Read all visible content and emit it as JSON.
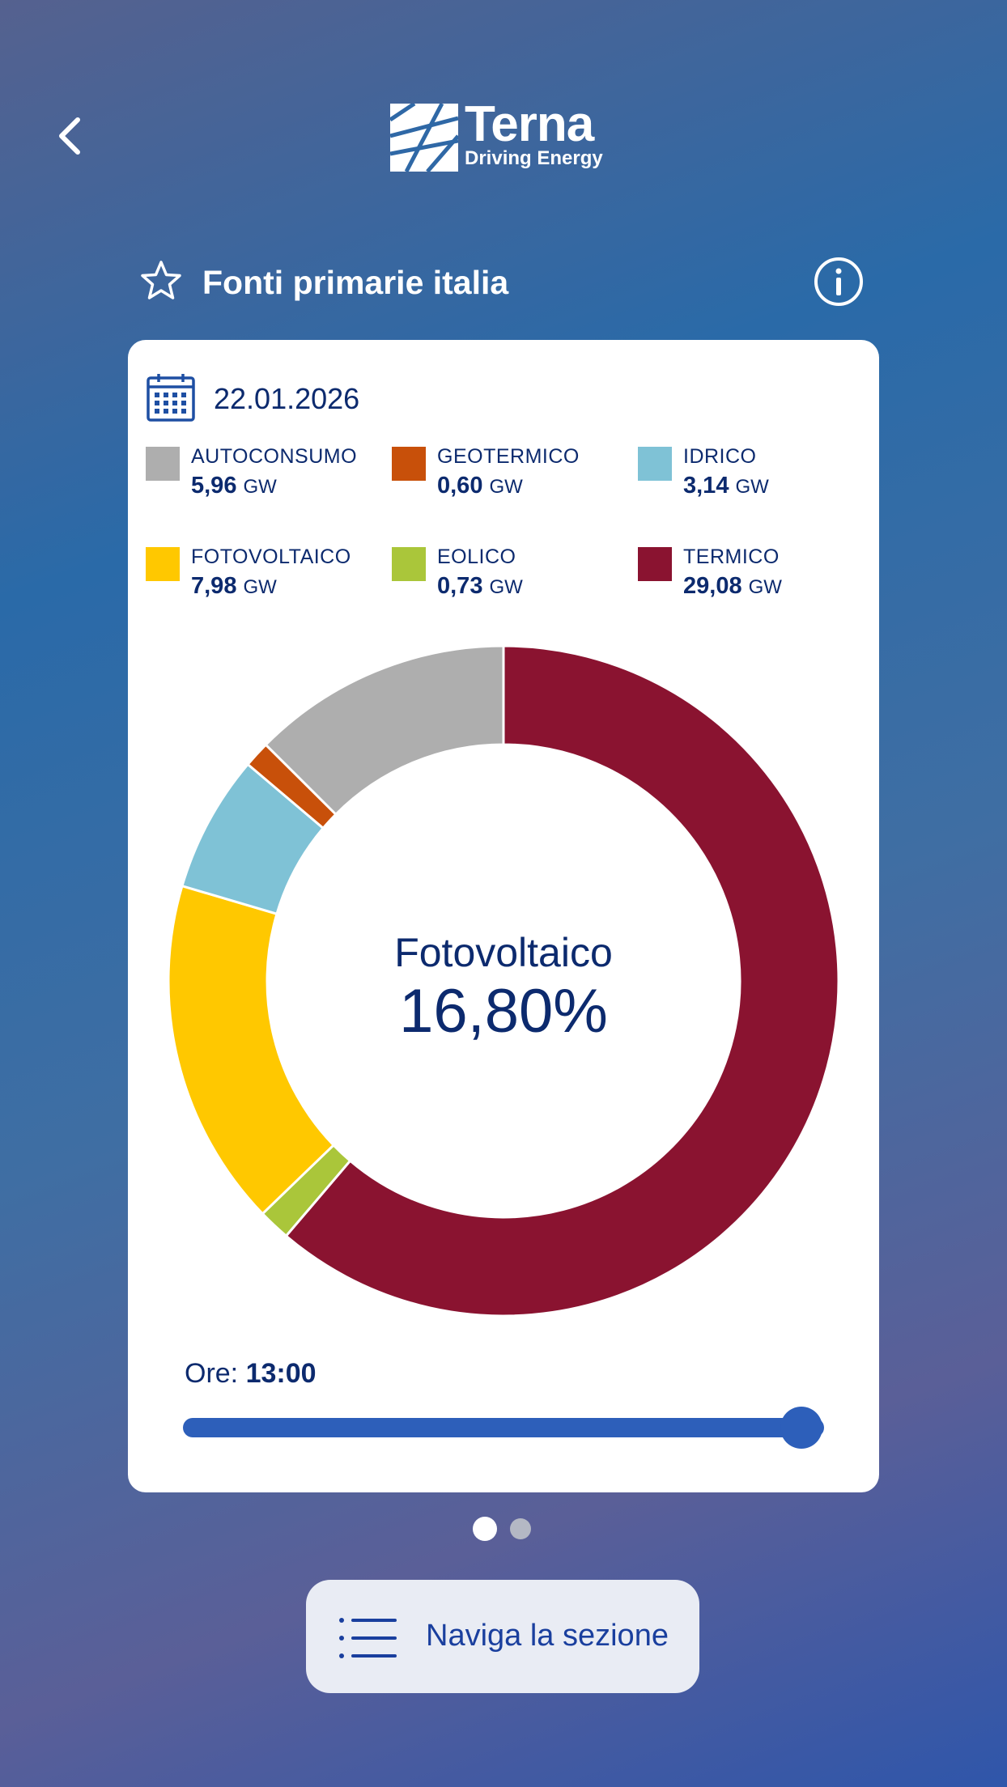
{
  "header": {
    "logo_word": "Terna",
    "logo_sub": "Driving Energy",
    "icons": [
      "chevron-left-icon",
      "star-icon",
      "info-icon"
    ]
  },
  "title": "Fonti primarie italia",
  "card": {
    "date": "22.01.2026",
    "legend": [
      {
        "name": "AUTOCONSUMO",
        "value": "5,96",
        "unit": "GW",
        "color": "#aeaeae"
      },
      {
        "name": "GEOTERMICO",
        "value": "0,60",
        "unit": "GW",
        "color": "#c8500a"
      },
      {
        "name": "IDRICO",
        "value": "3,14",
        "unit": "GW",
        "color": "#7fc2d6"
      },
      {
        "name": "FOTOVOLTAICO",
        "value": "7,98",
        "unit": "GW",
        "color": "#ffc800"
      },
      {
        "name": "EOLICO",
        "value": "0,73",
        "unit": "GW",
        "color": "#aac63a"
      },
      {
        "name": "TERMICO",
        "value": "29,08",
        "unit": "GW",
        "color": "#8a1330"
      }
    ],
    "center_label": "Fotovoltaico",
    "center_value": "16,80%",
    "ore_label": "Ore:",
    "ore_value": "13:00",
    "slider_fraction": 1.0
  },
  "chart_data": {
    "type": "pie",
    "categories": [
      "TERMICO",
      "EOLICO",
      "FOTOVOLTAICO",
      "IDRICO",
      "GEOTERMICO",
      "AUTOCONSUMO"
    ],
    "values": [
      29.08,
      0.73,
      7.98,
      3.14,
      0.6,
      5.96
    ],
    "colors": [
      "#8a1330",
      "#aac63a",
      "#ffc800",
      "#7fc2d6",
      "#c8500a",
      "#aeaeae"
    ]
  },
  "pager": {
    "pages": 2,
    "active": 1
  },
  "nav_button": {
    "label": "Naviga la sezione"
  }
}
